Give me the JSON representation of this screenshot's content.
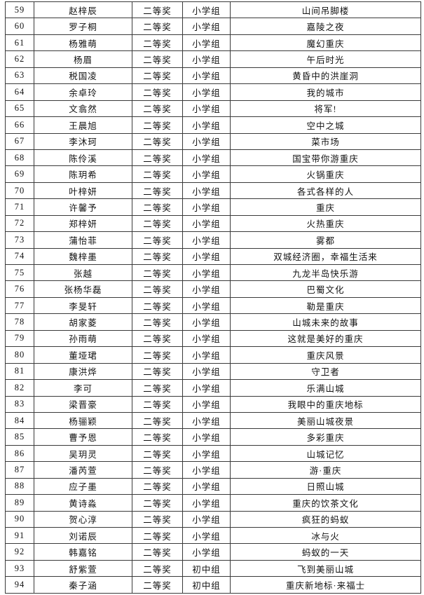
{
  "page": {
    "background_color": "#ffffff",
    "border_color": "#3a3a3a",
    "text_color": "#111111"
  },
  "table": {
    "rows": [
      {
        "no": "59",
        "name": "赵梓辰",
        "award": "二等奖",
        "group": "小学组",
        "title": "山间吊脚楼"
      },
      {
        "no": "60",
        "name": "罗子桐",
        "award": "二等奖",
        "group": "小学组",
        "title": "嘉陵之夜"
      },
      {
        "no": "61",
        "name": "杨雅萌",
        "award": "二等奖",
        "group": "小学组",
        "title": "魔幻重庆"
      },
      {
        "no": "62",
        "name": "杨眉",
        "award": "二等奖",
        "group": "小学组",
        "title": "午后时光"
      },
      {
        "no": "63",
        "name": "税国凌",
        "award": "二等奖",
        "group": "小学组",
        "title": "黄昏中的洪崖洞"
      },
      {
        "no": "64",
        "name": "余卓玲",
        "award": "二等奖",
        "group": "小学组",
        "title": "我的城市"
      },
      {
        "no": "65",
        "name": "文翕然",
        "award": "二等奖",
        "group": "小学组",
        "title": "将军!"
      },
      {
        "no": "66",
        "name": "王晨旭",
        "award": "二等奖",
        "group": "小学组",
        "title": "空中之城"
      },
      {
        "no": "67",
        "name": "李沐珂",
        "award": "二等奖",
        "group": "小学组",
        "title": "菜市场"
      },
      {
        "no": "68",
        "name": "陈伶溪",
        "award": "二等奖",
        "group": "小学组",
        "title": "国宝带你游重庆"
      },
      {
        "no": "69",
        "name": "陈玥希",
        "award": "二等奖",
        "group": "小学组",
        "title": "火锅重庆"
      },
      {
        "no": "70",
        "name": "叶梓妍",
        "award": "二等奖",
        "group": "小学组",
        "title": "各式各样的人"
      },
      {
        "no": "71",
        "name": "许馨予",
        "award": "二等奖",
        "group": "小学组",
        "title": "重庆"
      },
      {
        "no": "72",
        "name": "郑梓妍",
        "award": "二等奖",
        "group": "小学组",
        "title": "火热重庆"
      },
      {
        "no": "73",
        "name": "蒲怡菲",
        "award": "二等奖",
        "group": "小学组",
        "title": "雾都"
      },
      {
        "no": "74",
        "name": "魏梓墨",
        "award": "二等奖",
        "group": "小学组",
        "title": "双城经济圈，幸福生活来"
      },
      {
        "no": "75",
        "name": "张越",
        "award": "二等奖",
        "group": "小学组",
        "title": "九龙半岛快乐游"
      },
      {
        "no": "76",
        "name": "张杨华磊",
        "award": "二等奖",
        "group": "小学组",
        "title": "巴蜀文化"
      },
      {
        "no": "77",
        "name": "李旻轩",
        "award": "二等奖",
        "group": "小学组",
        "title": "勒是重庆"
      },
      {
        "no": "78",
        "name": "胡家菱",
        "award": "二等奖",
        "group": "小学组",
        "title": "山城未来的故事"
      },
      {
        "no": "79",
        "name": "孙雨萌",
        "award": "二等奖",
        "group": "小学组",
        "title": "这就是美好的重庆"
      },
      {
        "no": "80",
        "name": "董垭珺",
        "award": "二等奖",
        "group": "小学组",
        "title": "重庆风景"
      },
      {
        "no": "81",
        "name": "康洪烨",
        "award": "二等奖",
        "group": "小学组",
        "title": "守卫者"
      },
      {
        "no": "82",
        "name": "李可",
        "award": "二等奖",
        "group": "小学组",
        "title": "乐满山城"
      },
      {
        "no": "83",
        "name": "梁晋豪",
        "award": "二等奖",
        "group": "小学组",
        "title": "我眼中的重庆地标"
      },
      {
        "no": "84",
        "name": "杨骊颖",
        "award": "二等奖",
        "group": "小学组",
        "title": "美丽山城夜景"
      },
      {
        "no": "85",
        "name": "曹予恩",
        "award": "二等奖",
        "group": "小学组",
        "title": "多彩重庆"
      },
      {
        "no": "86",
        "name": "吴玥灵",
        "award": "二等奖",
        "group": "小学组",
        "title": "山城记忆"
      },
      {
        "no": "87",
        "name": "潘芮萱",
        "award": "二等奖",
        "group": "小学组",
        "title": "游·重庆"
      },
      {
        "no": "88",
        "name": "应子墨",
        "award": "二等奖",
        "group": "小学组",
        "title": "日照山城"
      },
      {
        "no": "89",
        "name": "黄诗淼",
        "award": "二等奖",
        "group": "小学组",
        "title": "重庆的饮茶文化"
      },
      {
        "no": "90",
        "name": "贺心淳",
        "award": "二等奖",
        "group": "小学组",
        "title": "疯狂的蚂蚁"
      },
      {
        "no": "91",
        "name": "刘诺辰",
        "award": "二等奖",
        "group": "小学组",
        "title": "冰与火"
      },
      {
        "no": "92",
        "name": "韩嘉铭",
        "award": "二等奖",
        "group": "小学组",
        "title": "蚂蚁的一天"
      },
      {
        "no": "93",
        "name": "舒紫萱",
        "award": "二等奖",
        "group": "初中组",
        "title": "飞到美丽山城"
      },
      {
        "no": "94",
        "name": "秦子涵",
        "award": "二等奖",
        "group": "初中组",
        "title": "重庆新地标·来福士"
      }
    ]
  }
}
